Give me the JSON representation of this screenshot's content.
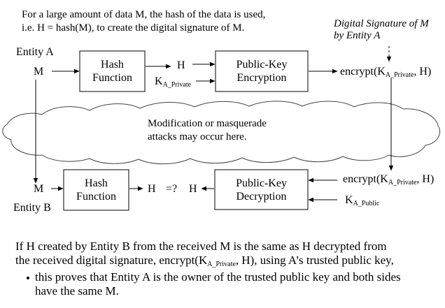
{
  "intro": {
    "line1": "For a large amount of data M, the hash of the data is used,",
    "line2": "i.e. H = hash(M), to create the digital signature of M."
  },
  "signature_label": {
    "line1": "Digital Signature of M",
    "line2": "by Entity A"
  },
  "top": {
    "entity": "Entity A",
    "m": "M",
    "hash_box": {
      "line1": "Hash",
      "line2": "Function"
    },
    "h": "H",
    "key": {
      "base": "K",
      "sub": "A_Private"
    },
    "enc_box": {
      "line1": "Public-Key",
      "line2": "Encryption"
    },
    "result": {
      "prefix": "encrypt(K",
      "sub": "A_Private",
      "suffix": ", H)"
    }
  },
  "cloud": {
    "line1": "Modification or masquerade",
    "line2": "attacks may occur here."
  },
  "bottom": {
    "entity": "Entity B",
    "m": "M",
    "hash_box": {
      "line1": "Hash",
      "line2": "Function"
    },
    "h_left": "H",
    "compare": "=?",
    "h_right": "H",
    "dec_box": {
      "line1": "Public-Key",
      "line2": "Decryption"
    },
    "received": {
      "prefix": "encrypt(K",
      "sub": "A_Private",
      "suffix": ", H)"
    },
    "key": {
      "base": "K",
      "sub": "A_Public"
    }
  },
  "explanation": {
    "l1": "If H created by Entity B from the received M is the same as H decrypted from",
    "l2_prefix": "the received digital signature, encrypt(K",
    "l2_sub": "A_Private",
    "l2_suffix": ", H), using A’s trusted public key,",
    "bullet": "•",
    "b1": "this proves that Entity A is the owner of the trusted public key and both sides",
    "b2": "have the same M."
  }
}
